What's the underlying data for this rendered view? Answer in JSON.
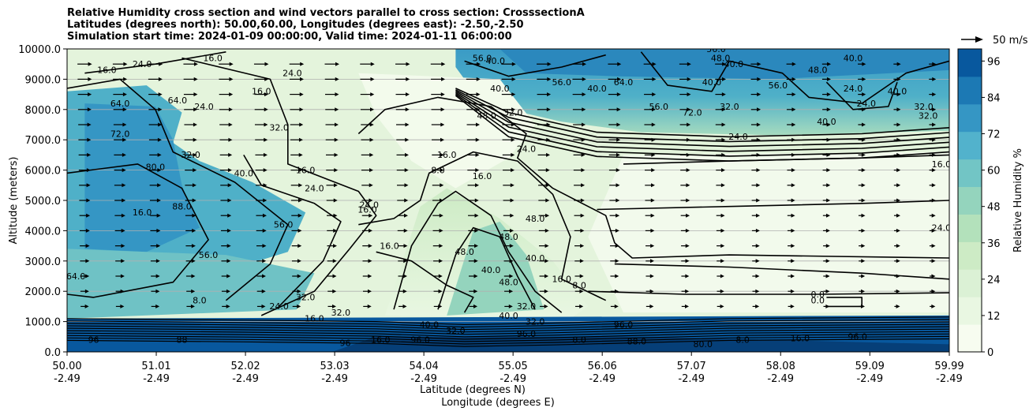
{
  "title": {
    "line1": "Relative Humidity cross section and wind vectors parallel to cross section: CrosssectionA",
    "line2": "Latitudes (degrees north): 50.00,60.00, Longitudes (degrees east): -2.50,-2.50",
    "line3": "Simulation start time: 2024-01-09 00:00:00, Valid time: 2024-01-11 06:00:00"
  },
  "chart_data": {
    "type": "heatmap",
    "ylabel": "Altitude (meters)",
    "xlabel_lat": "Latitude (degrees N)",
    "xlabel_lon": "Longitude (degrees E)",
    "x_ticks_lat": [
      "50.00",
      "51.01",
      "52.02",
      "53.03",
      "54.04",
      "55.05",
      "56.06",
      "57.07",
      "58.08",
      "59.09",
      "59.99"
    ],
    "x_ticks_lon": [
      "-2.49",
      "-2.49",
      "-2.49",
      "-2.49",
      "-2.49",
      "-2.49",
      "-2.49",
      "-2.49",
      "-2.49",
      "-2.49",
      "-2.49"
    ],
    "xlim": [
      50.0,
      59.99
    ],
    "y_ticks": [
      "0.0",
      "1000.0",
      "2000.0",
      "3000.0",
      "4000.0",
      "5000.0",
      "6000.0",
      "7000.0",
      "8000.0",
      "9000.0",
      "10000.0"
    ],
    "ylim": [
      0,
      10000
    ],
    "grid": true,
    "colorbar": {
      "label": "Relative Humidity %",
      "ticks": [
        "0",
        "12",
        "24",
        "36",
        "48",
        "60",
        "72",
        "84",
        "96"
      ],
      "range": [
        0,
        100
      ],
      "colors": [
        "#f7fcf0",
        "#e9f7e2",
        "#dbf1d5",
        "#cdebc5",
        "#b3e1bb",
        "#94d4bd",
        "#72c5c5",
        "#52b2cc",
        "#3596c4",
        "#1c79b4",
        "#08589e"
      ]
    },
    "quiver_key": "50 m/s",
    "contour_labels": [
      {
        "lat": 50.45,
        "alt": 9200,
        "text": "16.0"
      },
      {
        "lat": 50.85,
        "alt": 9400,
        "text": "24.0"
      },
      {
        "lat": 51.65,
        "alt": 9600,
        "text": "16.0"
      },
      {
        "lat": 50.6,
        "alt": 8100,
        "text": "64.0"
      },
      {
        "lat": 50.6,
        "alt": 7100,
        "text": "72.0"
      },
      {
        "lat": 51.25,
        "alt": 8200,
        "text": "64.0"
      },
      {
        "lat": 51.55,
        "alt": 8000,
        "text": "24.0"
      },
      {
        "lat": 52.55,
        "alt": 9100,
        "text": "24.0"
      },
      {
        "lat": 52.2,
        "alt": 8500,
        "text": "16.0"
      },
      {
        "lat": 52.4,
        "alt": 7300,
        "text": "32.0"
      },
      {
        "lat": 51.4,
        "alt": 6400,
        "text": "32.0"
      },
      {
        "lat": 51.0,
        "alt": 6000,
        "text": "80.0"
      },
      {
        "lat": 52.0,
        "alt": 5800,
        "text": "40.0"
      },
      {
        "lat": 52.7,
        "alt": 5900,
        "text": "16.0"
      },
      {
        "lat": 52.8,
        "alt": 5300,
        "text": "24.0"
      },
      {
        "lat": 52.45,
        "alt": 4100,
        "text": "56.0"
      },
      {
        "lat": 51.6,
        "alt": 3100,
        "text": "56.0"
      },
      {
        "lat": 50.85,
        "alt": 4500,
        "text": "16.0"
      },
      {
        "lat": 51.3,
        "alt": 4700,
        "text": "88.0"
      },
      {
        "lat": 50.1,
        "alt": 2400,
        "text": "64.0"
      },
      {
        "lat": 51.5,
        "alt": 1600,
        "text": "8.0"
      },
      {
        "lat": 52.4,
        "alt": 1400,
        "text": "24.0"
      },
      {
        "lat": 52.7,
        "alt": 1700,
        "text": "32.0"
      },
      {
        "lat": 53.4,
        "alt": 4600,
        "text": "16.0"
      },
      {
        "lat": 53.42,
        "alt": 4750,
        "text": "24.0"
      },
      {
        "lat": 53.65,
        "alt": 3400,
        "text": "16.0"
      },
      {
        "lat": 54.2,
        "alt": 5900,
        "text": "8.0"
      },
      {
        "lat": 54.3,
        "alt": 6400,
        "text": "16.0"
      },
      {
        "lat": 54.7,
        "alt": 5700,
        "text": "16.0"
      },
      {
        "lat": 55.2,
        "alt": 6600,
        "text": "24.0"
      },
      {
        "lat": 54.9,
        "alt": 8600,
        "text": "40.0"
      },
      {
        "lat": 54.75,
        "alt": 7700,
        "text": "48.0"
      },
      {
        "lat": 55.05,
        "alt": 7800,
        "text": "32.0"
      },
      {
        "lat": 55.6,
        "alt": 8800,
        "text": "56.0"
      },
      {
        "lat": 55.3,
        "alt": 4300,
        "text": "48.0"
      },
      {
        "lat": 54.5,
        "alt": 3200,
        "text": "48.0"
      },
      {
        "lat": 55.0,
        "alt": 3700,
        "text": "48.0"
      },
      {
        "lat": 55.3,
        "alt": 3000,
        "text": "40.0"
      },
      {
        "lat": 54.8,
        "alt": 2600,
        "text": "40.0"
      },
      {
        "lat": 55.0,
        "alt": 2200,
        "text": "48.0"
      },
      {
        "lat": 55.2,
        "alt": 1400,
        "text": "32.0"
      },
      {
        "lat": 55.0,
        "alt": 1100,
        "text": "40.0"
      },
      {
        "lat": 55.6,
        "alt": 2300,
        "text": "16.0"
      },
      {
        "lat": 55.8,
        "alt": 2100,
        "text": "8.0"
      },
      {
        "lat": 54.1,
        "alt": 800,
        "text": "40.0"
      },
      {
        "lat": 54.4,
        "alt": 600,
        "text": "32.0"
      },
      {
        "lat": 53.55,
        "alt": 300,
        "text": "16.0"
      },
      {
        "lat": 54.0,
        "alt": 300,
        "text": "96.0"
      },
      {
        "lat": 55.3,
        "alt": 900,
        "text": "32.0"
      },
      {
        "lat": 55.2,
        "alt": 500,
        "text": "96.0"
      },
      {
        "lat": 56.3,
        "alt": 800,
        "text": "96.0"
      },
      {
        "lat": 55.8,
        "alt": 300,
        "text": "8.0"
      },
      {
        "lat": 56.45,
        "alt": 250,
        "text": "88.0"
      },
      {
        "lat": 57.2,
        "alt": 150,
        "text": "80.0"
      },
      {
        "lat": 57.65,
        "alt": 300,
        "text": "8.0"
      },
      {
        "lat": 58.3,
        "alt": 350,
        "text": "16.0"
      },
      {
        "lat": 58.95,
        "alt": 400,
        "text": "96.0"
      },
      {
        "lat": 50.3,
        "alt": 300,
        "text": "96"
      },
      {
        "lat": 51.3,
        "alt": 300,
        "text": "88"
      },
      {
        "lat": 53.15,
        "alt": 200,
        "text": "96"
      },
      {
        "lat": 53.1,
        "alt": 1200,
        "text": "32.0"
      },
      {
        "lat": 52.8,
        "alt": 1000,
        "text": "16.0"
      },
      {
        "lat": 57.08,
        "alt": 7800,
        "text": "72.0"
      },
      {
        "lat": 57.6,
        "alt": 7000,
        "text": "24.0"
      },
      {
        "lat": 58.6,
        "alt": 7500,
        "text": "40.0"
      },
      {
        "lat": 58.5,
        "alt": 9200,
        "text": "48.0"
      },
      {
        "lat": 58.9,
        "alt": 8600,
        "text": "24.0"
      },
      {
        "lat": 59.05,
        "alt": 8100,
        "text": "24.0"
      },
      {
        "lat": 59.4,
        "alt": 8500,
        "text": "40.0"
      },
      {
        "lat": 59.75,
        "alt": 7700,
        "text": "32.0"
      },
      {
        "lat": 59.9,
        "alt": 6100,
        "text": "16.0"
      },
      {
        "lat": 59.9,
        "alt": 4000,
        "text": "24.0"
      },
      {
        "lat": 57.35,
        "alt": 9900,
        "text": "56.0"
      },
      {
        "lat": 57.4,
        "alt": 9600,
        "text": "48.0"
      },
      {
        "lat": 57.55,
        "alt": 9400,
        "text": "40.0"
      },
      {
        "lat": 58.9,
        "alt": 9600,
        "text": "40.0"
      },
      {
        "lat": 56.3,
        "alt": 8800,
        "text": "64.0"
      },
      {
        "lat": 56.0,
        "alt": 8600,
        "text": "40.0"
      },
      {
        "lat": 57.3,
        "alt": 8800,
        "text": "40.0"
      },
      {
        "lat": 56.7,
        "alt": 8000,
        "text": "56.0"
      },
      {
        "lat": 57.5,
        "alt": 8000,
        "text": "32.0"
      },
      {
        "lat": 58.05,
        "alt": 8700,
        "text": "56.0"
      },
      {
        "lat": 59.7,
        "alt": 8000,
        "text": "32.0"
      },
      {
        "lat": 54.7,
        "alt": 9600,
        "text": "56.0"
      },
      {
        "lat": 54.85,
        "alt": 9500,
        "text": "40.0"
      },
      {
        "lat": 58.5,
        "alt": 1600,
        "text": "0.0"
      },
      {
        "lat": 58.5,
        "alt": 1800,
        "text": "0.0"
      }
    ]
  }
}
